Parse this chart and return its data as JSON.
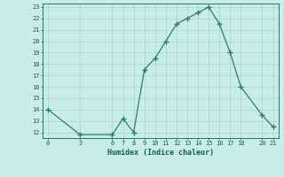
{
  "x": [
    0,
    3,
    6,
    7,
    8,
    9,
    10,
    11,
    12,
    13,
    14,
    15,
    16,
    17,
    18,
    20,
    21
  ],
  "y": [
    14,
    11.8,
    11.8,
    13.2,
    12.0,
    17.5,
    18.5,
    20.0,
    21.5,
    22.0,
    22.5,
    23.0,
    21.5,
    19.0,
    16.0,
    13.5,
    12.5
  ],
  "xlim": [
    -0.5,
    21.5
  ],
  "ylim": [
    11.5,
    23.3
  ],
  "xticks": [
    0,
    3,
    6,
    7,
    8,
    9,
    10,
    11,
    12,
    13,
    14,
    15,
    16,
    17,
    18,
    20,
    21
  ],
  "yticks": [
    12,
    13,
    14,
    15,
    16,
    17,
    18,
    19,
    20,
    21,
    22,
    23
  ],
  "xlabel": "Humidex (Indice chaleur)",
  "line_color": "#2e7d6e",
  "marker": "+",
  "markersize": 4,
  "bg_color": "#c8ece8",
  "grid_color": "#a8d4d0",
  "tick_color": "#1a5c50",
  "label_color": "#1a5c50"
}
